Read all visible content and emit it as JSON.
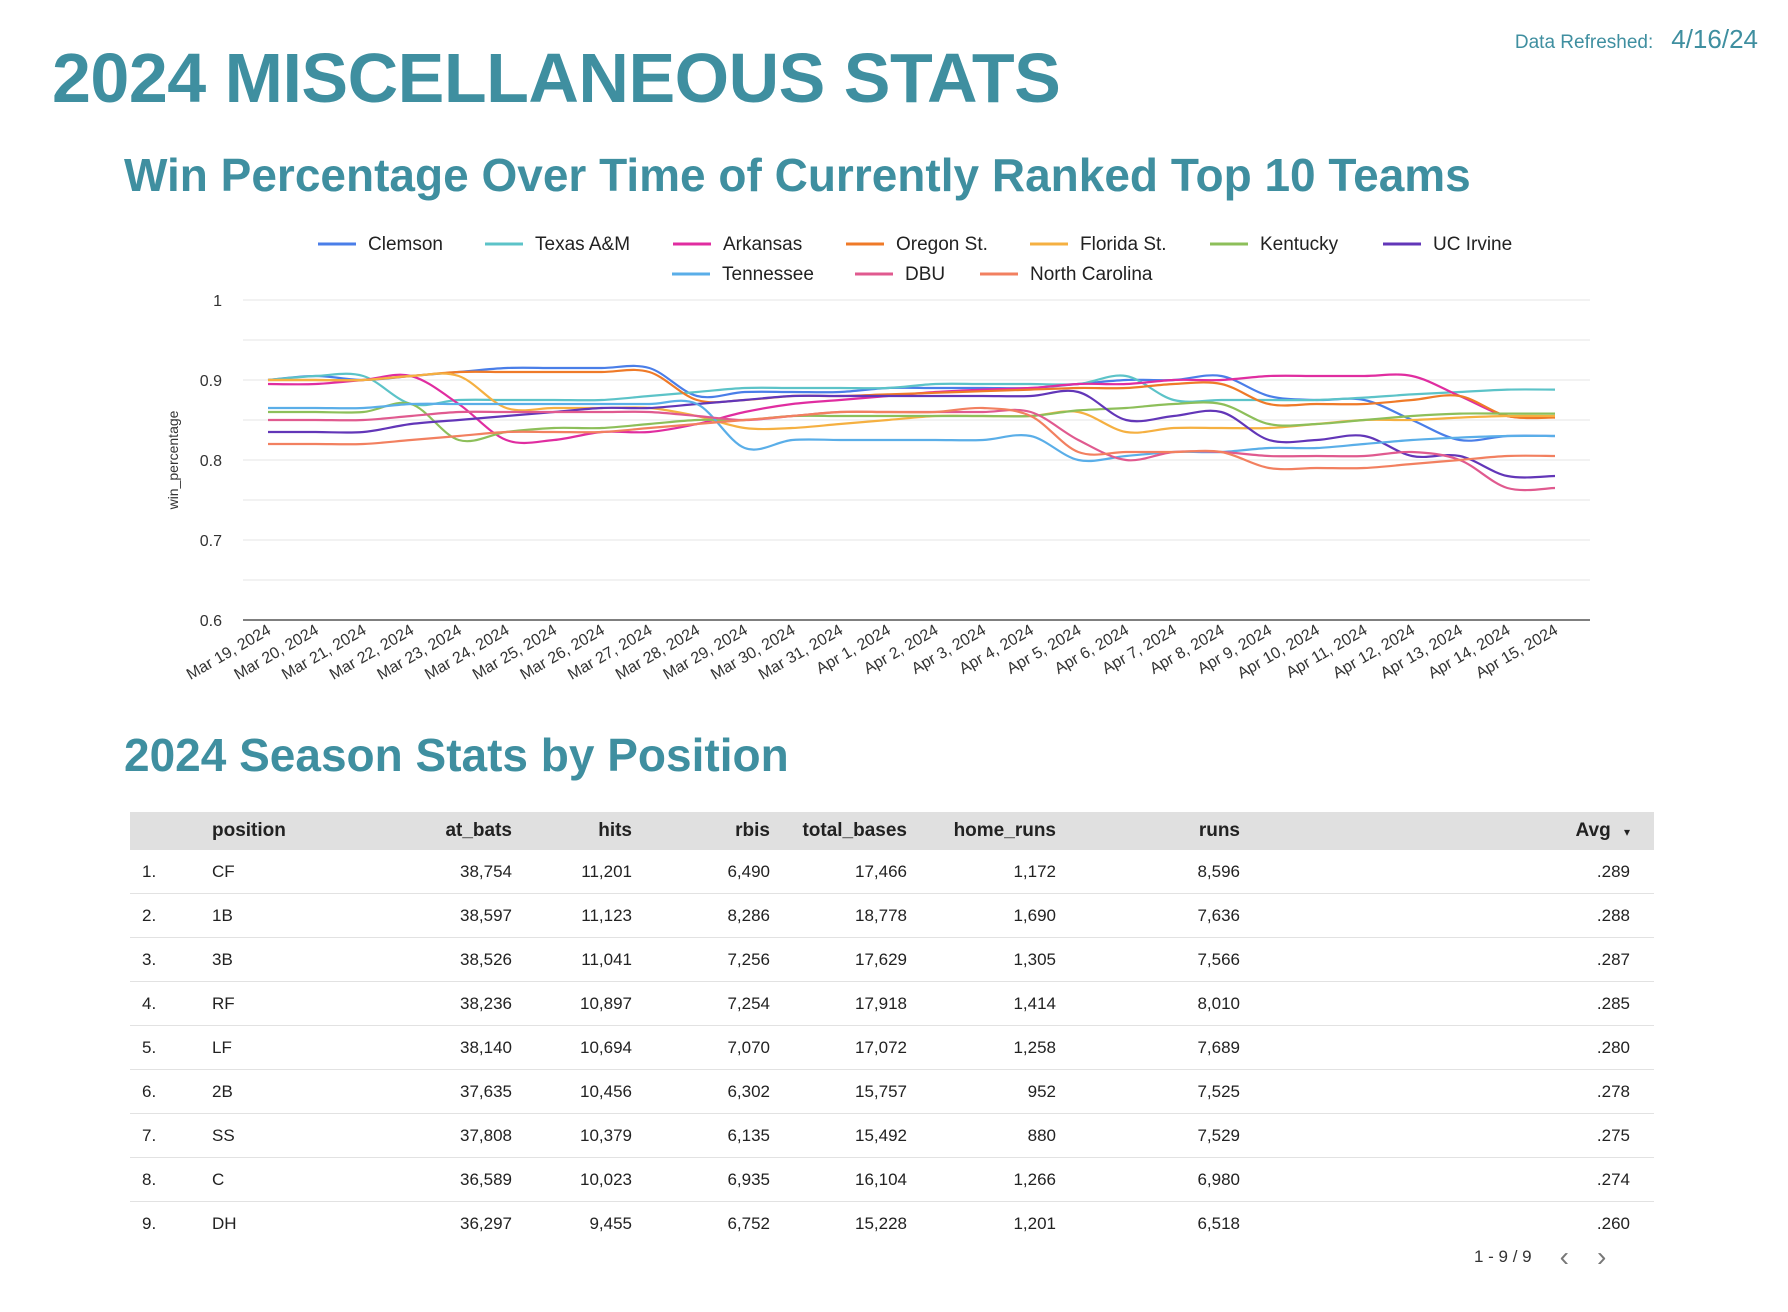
{
  "header": {
    "title": "2024 MISCELLANEOUS STATS",
    "refresh_label": "Data Refreshed:",
    "refresh_value": "4/16/24"
  },
  "chart_title": "Win Percentage Over Time of Currently Ranked Top 10 Teams",
  "table_title": "2024 Season Stats by Position",
  "chart_data": {
    "type": "line",
    "ylabel": "win_percentage",
    "ylim": [
      0.6,
      1
    ],
    "yticks": [
      "0.6",
      "0.7",
      "0.8",
      "0.9",
      "1"
    ],
    "grid": true,
    "legend_position": "top",
    "x": [
      "Mar 19, 2024",
      "Mar 20, 2024",
      "Mar 21, 2024",
      "Mar 22, 2024",
      "Mar 23, 2024",
      "Mar 24, 2024",
      "Mar 25, 2024",
      "Mar 26, 2024",
      "Mar 27, 2024",
      "Mar 28, 2024",
      "Mar 29, 2024",
      "Mar 30, 2024",
      "Mar 31, 2024",
      "Apr 1, 2024",
      "Apr 2, 2024",
      "Apr 3, 2024",
      "Apr 4, 2024",
      "Apr 5, 2024",
      "Apr 6, 2024",
      "Apr 7, 2024",
      "Apr 8, 2024",
      "Apr 9, 2024",
      "Apr 10, 2024",
      "Apr 11, 2024",
      "Apr 12, 2024",
      "Apr 13, 2024",
      "Apr 14, 2024",
      "Apr 15, 2024"
    ],
    "series": [
      {
        "name": "Clemson",
        "color": "#4a7ee8",
        "values": [
          0.9,
          0.905,
          0.9,
          0.905,
          0.91,
          0.915,
          0.915,
          0.915,
          0.915,
          0.88,
          0.885,
          0.885,
          0.885,
          0.89,
          0.89,
          0.89,
          0.89,
          0.895,
          0.9,
          0.9,
          0.905,
          0.88,
          0.875,
          0.875,
          0.85,
          0.825,
          0.83,
          0.83
        ]
      },
      {
        "name": "Texas A&M",
        "color": "#5cc3c8",
        "values": [
          0.9,
          0.905,
          0.905,
          0.87,
          0.875,
          0.875,
          0.875,
          0.875,
          0.88,
          0.885,
          0.89,
          0.89,
          0.89,
          0.89,
          0.895,
          0.895,
          0.895,
          0.895,
          0.905,
          0.875,
          0.875,
          0.875,
          0.875,
          0.878,
          0.882,
          0.885,
          0.888,
          0.888
        ]
      },
      {
        "name": "Arkansas",
        "color": "#e02da0",
        "values": [
          0.895,
          0.895,
          0.9,
          0.905,
          0.87,
          0.825,
          0.825,
          0.835,
          0.835,
          0.845,
          0.86,
          0.87,
          0.875,
          0.88,
          0.885,
          0.888,
          0.89,
          0.895,
          0.895,
          0.9,
          0.9,
          0.905,
          0.905,
          0.905,
          0.905,
          0.88,
          0.855,
          0.855
        ]
      },
      {
        "name": "Oregon St.",
        "color": "#ef7a28",
        "values": [
          0.9,
          0.9,
          0.9,
          0.905,
          0.91,
          0.91,
          0.91,
          0.91,
          0.91,
          0.875,
          0.875,
          0.88,
          0.88,
          0.882,
          0.884,
          0.886,
          0.888,
          0.89,
          0.89,
          0.895,
          0.895,
          0.87,
          0.87,
          0.87,
          0.875,
          0.88,
          0.855,
          0.853
        ]
      },
      {
        "name": "Florida St.",
        "color": "#f5b041",
        "values": [
          0.9,
          0.9,
          0.9,
          0.905,
          0.905,
          0.865,
          0.865,
          0.865,
          0.865,
          0.855,
          0.84,
          0.84,
          0.845,
          0.85,
          0.855,
          0.855,
          0.855,
          0.86,
          0.835,
          0.84,
          0.84,
          0.84,
          0.845,
          0.85,
          0.85,
          0.853,
          0.855,
          0.855
        ]
      },
      {
        "name": "Kentucky",
        "color": "#8dbf5a",
        "values": [
          0.86,
          0.86,
          0.86,
          0.87,
          0.825,
          0.835,
          0.84,
          0.84,
          0.845,
          0.85,
          0.85,
          0.855,
          0.855,
          0.855,
          0.855,
          0.855,
          0.855,
          0.862,
          0.865,
          0.87,
          0.87,
          0.845,
          0.845,
          0.85,
          0.855,
          0.858,
          0.858,
          0.858
        ]
      },
      {
        "name": "UC Irvine",
        "color": "#6236b8",
        "values": [
          0.835,
          0.835,
          0.835,
          0.845,
          0.85,
          0.855,
          0.86,
          0.865,
          0.865,
          0.87,
          0.875,
          0.88,
          0.88,
          0.88,
          0.88,
          0.88,
          0.88,
          0.885,
          0.85,
          0.855,
          0.86,
          0.825,
          0.825,
          0.83,
          0.805,
          0.805,
          0.78,
          0.78
        ]
      },
      {
        "name": "Tennessee",
        "color": "#5aaee8",
        "values": [
          0.865,
          0.865,
          0.865,
          0.87,
          0.87,
          0.87,
          0.87,
          0.87,
          0.87,
          0.87,
          0.815,
          0.825,
          0.825,
          0.825,
          0.825,
          0.825,
          0.83,
          0.8,
          0.805,
          0.81,
          0.81,
          0.815,
          0.815,
          0.82,
          0.825,
          0.828,
          0.83,
          0.83
        ]
      },
      {
        "name": "DBU",
        "color": "#e05a8f",
        "values": [
          0.85,
          0.85,
          0.85,
          0.855,
          0.86,
          0.86,
          0.86,
          0.86,
          0.86,
          0.855,
          0.85,
          0.855,
          0.86,
          0.86,
          0.86,
          0.86,
          0.86,
          0.825,
          0.8,
          0.81,
          0.81,
          0.805,
          0.805,
          0.805,
          0.81,
          0.8,
          0.765,
          0.765
        ]
      },
      {
        "name": "North Carolina",
        "color": "#f28060",
        "values": [
          0.82,
          0.82,
          0.82,
          0.825,
          0.83,
          0.835,
          0.835,
          0.835,
          0.84,
          0.845,
          0.85,
          0.855,
          0.86,
          0.86,
          0.86,
          0.865,
          0.855,
          0.81,
          0.81,
          0.81,
          0.81,
          0.79,
          0.79,
          0.79,
          0.795,
          0.8,
          0.805,
          0.805
        ]
      }
    ]
  },
  "table": {
    "columns": [
      {
        "key": "idx",
        "label": ""
      },
      {
        "key": "position",
        "label": "position"
      },
      {
        "key": "at_bats",
        "label": "at_bats"
      },
      {
        "key": "hits",
        "label": "hits"
      },
      {
        "key": "rbis",
        "label": "rbis"
      },
      {
        "key": "total_bases",
        "label": "total_bases"
      },
      {
        "key": "home_runs",
        "label": "home_runs"
      },
      {
        "key": "runs",
        "label": "runs"
      },
      {
        "key": "avg",
        "label": "Avg"
      }
    ],
    "sort_indicator": "▾",
    "rows": [
      {
        "idx": "1.",
        "position": "CF",
        "at_bats": "38,754",
        "hits": "11,201",
        "rbis": "6,490",
        "total_bases": "17,466",
        "home_runs": "1,172",
        "runs": "8,596",
        "avg": ".289"
      },
      {
        "idx": "2.",
        "position": "1B",
        "at_bats": "38,597",
        "hits": "11,123",
        "rbis": "8,286",
        "total_bases": "18,778",
        "home_runs": "1,690",
        "runs": "7,636",
        "avg": ".288"
      },
      {
        "idx": "3.",
        "position": "3B",
        "at_bats": "38,526",
        "hits": "11,041",
        "rbis": "7,256",
        "total_bases": "17,629",
        "home_runs": "1,305",
        "runs": "7,566",
        "avg": ".287"
      },
      {
        "idx": "4.",
        "position": "RF",
        "at_bats": "38,236",
        "hits": "10,897",
        "rbis": "7,254",
        "total_bases": "17,918",
        "home_runs": "1,414",
        "runs": "8,010",
        "avg": ".285"
      },
      {
        "idx": "5.",
        "position": "LF",
        "at_bats": "38,140",
        "hits": "10,694",
        "rbis": "7,070",
        "total_bases": "17,072",
        "home_runs": "1,258",
        "runs": "7,689",
        "avg": ".280"
      },
      {
        "idx": "6.",
        "position": "2B",
        "at_bats": "37,635",
        "hits": "10,456",
        "rbis": "6,302",
        "total_bases": "15,757",
        "home_runs": "952",
        "runs": "7,525",
        "avg": ".278"
      },
      {
        "idx": "7.",
        "position": "SS",
        "at_bats": "37,808",
        "hits": "10,379",
        "rbis": "6,135",
        "total_bases": "15,492",
        "home_runs": "880",
        "runs": "7,529",
        "avg": ".275"
      },
      {
        "idx": "8.",
        "position": "C",
        "at_bats": "36,589",
        "hits": "10,023",
        "rbis": "6,935",
        "total_bases": "16,104",
        "home_runs": "1,266",
        "runs": "6,980",
        "avg": ".274"
      },
      {
        "idx": "9.",
        "position": "DH",
        "at_bats": "36,297",
        "hits": "9,455",
        "rbis": "6,752",
        "total_bases": "15,228",
        "home_runs": "1,201",
        "runs": "6,518",
        "avg": ".260"
      }
    ]
  },
  "pager": {
    "range": "1 - 9 / 9",
    "prev_icon": "chevron-left-icon",
    "next_icon": "chevron-right-icon",
    "prev_glyph": "‹",
    "next_glyph": "›"
  }
}
